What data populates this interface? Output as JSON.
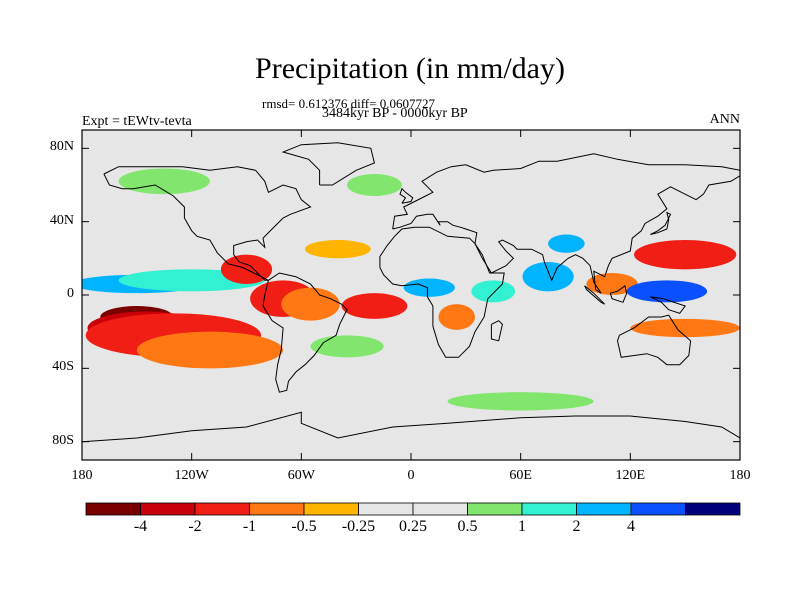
{
  "title": "Precipitation (in mm/day)",
  "stats": "rmsd= 0.612376 diff= 0.0607727",
  "period": "3484kyr BP - 0000kyr BP",
  "experiment": "Expt = tEWtv-tevta",
  "season": "ANN",
  "map": {
    "projection": "cylindrical-equidistant",
    "lon_range": [
      -180,
      180
    ],
    "lat_range": [
      -90,
      90
    ],
    "background_color": "#e6e6e6",
    "lat_ticks": [
      {
        "lat": 80,
        "label": "80N"
      },
      {
        "lat": 40,
        "label": "40N"
      },
      {
        "lat": 0,
        "label": "0"
      },
      {
        "lat": -40,
        "label": "40S"
      },
      {
        "lat": -80,
        "label": "80S"
      }
    ],
    "lon_ticks": [
      {
        "lon": -180,
        "label": "180"
      },
      {
        "lon": -120,
        "label": "120W"
      },
      {
        "lon": -60,
        "label": "60W"
      },
      {
        "lon": 0,
        "label": "0"
      },
      {
        "lon": 60,
        "label": "60E"
      },
      {
        "lon": 120,
        "label": "120E"
      },
      {
        "lon": 180,
        "label": "180"
      }
    ]
  },
  "colorbar": {
    "colors": [
      "#7a0000",
      "#c8000a",
      "#f01e14",
      "#ff7814",
      "#ffb400",
      "#e6e6e6",
      "#e6e6e6",
      "#82e66e",
      "#32f0d2",
      "#00b4ff",
      "#0a50ff",
      "#00007a"
    ],
    "labels": [
      "-4",
      "-2",
      "-1",
      "-0.5",
      "-0.25",
      "0.25",
      "0.5",
      "1",
      "2",
      "4"
    ]
  },
  "anomaly_regions": [
    {
      "lon": -150,
      "lat": -12,
      "rx": 20,
      "ry": 6,
      "color": "#7a0000"
    },
    {
      "lon": -145,
      "lat": -18,
      "rx": 32,
      "ry": 9,
      "color": "#c8000a"
    },
    {
      "lon": -130,
      "lat": -22,
      "rx": 48,
      "ry": 12,
      "color": "#f01e14"
    },
    {
      "lon": -110,
      "lat": -30,
      "rx": 40,
      "ry": 10,
      "color": "#ff7814"
    },
    {
      "lon": -150,
      "lat": 6,
      "rx": 35,
      "ry": 5,
      "color": "#00b4ff"
    },
    {
      "lon": -120,
      "lat": 8,
      "rx": 40,
      "ry": 6,
      "color": "#32f0d2"
    },
    {
      "lon": -90,
      "lat": 14,
      "rx": 14,
      "ry": 8,
      "color": "#f01e14"
    },
    {
      "lon": -70,
      "lat": -2,
      "rx": 18,
      "ry": 10,
      "color": "#f01e14"
    },
    {
      "lon": -55,
      "lat": -5,
      "rx": 16,
      "ry": 9,
      "color": "#ff7814"
    },
    {
      "lon": -20,
      "lat": -6,
      "rx": 18,
      "ry": 7,
      "color": "#f01e14"
    },
    {
      "lon": -40,
      "lat": 25,
      "rx": 18,
      "ry": 5,
      "color": "#ffb400"
    },
    {
      "lon": -35,
      "lat": -28,
      "rx": 20,
      "ry": 6,
      "color": "#82e66e"
    },
    {
      "lon": 10,
      "lat": 4,
      "rx": 14,
      "ry": 5,
      "color": "#00b4ff"
    },
    {
      "lon": 25,
      "lat": -12,
      "rx": 10,
      "ry": 7,
      "color": "#ff7814"
    },
    {
      "lon": 45,
      "lat": 2,
      "rx": 12,
      "ry": 6,
      "color": "#32f0d2"
    },
    {
      "lon": 75,
      "lat": 10,
      "rx": 14,
      "ry": 8,
      "color": "#00b4ff"
    },
    {
      "lon": 85,
      "lat": 28,
      "rx": 10,
      "ry": 5,
      "color": "#00b4ff"
    },
    {
      "lon": 110,
      "lat": 6,
      "rx": 14,
      "ry": 6,
      "color": "#ff7814"
    },
    {
      "lon": 140,
      "lat": 2,
      "rx": 22,
      "ry": 6,
      "color": "#0a50ff"
    },
    {
      "lon": 150,
      "lat": 22,
      "rx": 28,
      "ry": 8,
      "color": "#f01e14"
    },
    {
      "lon": 150,
      "lat": -18,
      "rx": 30,
      "ry": 5,
      "color": "#ff7814"
    },
    {
      "lon": -135,
      "lat": 62,
      "rx": 25,
      "ry": 7,
      "color": "#82e66e"
    },
    {
      "lon": -20,
      "lat": 60,
      "rx": 15,
      "ry": 6,
      "color": "#82e66e"
    },
    {
      "lon": 60,
      "lat": -58,
      "rx": 40,
      "ry": 5,
      "color": "#82e66e"
    }
  ],
  "coastlines": [
    [
      [
        -168,
        66
      ],
      [
        -160,
        70
      ],
      [
        -140,
        70
      ],
      [
        -125,
        70
      ],
      [
        -110,
        68
      ],
      [
        -95,
        70
      ],
      [
        -85,
        68
      ],
      [
        -80,
        62
      ],
      [
        -78,
        56
      ],
      [
        -70,
        60
      ],
      [
        -63,
        58
      ],
      [
        -60,
        52
      ],
      [
        -55,
        48
      ],
      [
        -66,
        44
      ],
      [
        -70,
        42
      ],
      [
        -76,
        36
      ],
      [
        -81,
        31
      ],
      [
        -80,
        26
      ],
      [
        -82,
        28
      ],
      [
        -84,
        30
      ],
      [
        -90,
        29
      ],
      [
        -97,
        27
      ],
      [
        -97,
        22
      ],
      [
        -94,
        18
      ],
      [
        -88,
        16
      ],
      [
        -84,
        12
      ],
      [
        -80,
        8
      ],
      [
        -78,
        8
      ],
      [
        -86,
        12
      ],
      [
        -92,
        15
      ],
      [
        -100,
        17
      ],
      [
        -106,
        23
      ],
      [
        -110,
        30
      ],
      [
        -117,
        32
      ],
      [
        -120,
        35
      ],
      [
        -124,
        42
      ],
      [
        -124,
        48
      ],
      [
        -130,
        54
      ],
      [
        -140,
        60
      ],
      [
        -152,
        58
      ],
      [
        -158,
        58
      ],
      [
        -165,
        60
      ],
      [
        -168,
        66
      ]
    ],
    [
      [
        -78,
        8
      ],
      [
        -72,
        12
      ],
      [
        -63,
        10
      ],
      [
        -55,
        6
      ],
      [
        -50,
        0
      ],
      [
        -44,
        -2
      ],
      [
        -38,
        -5
      ],
      [
        -35,
        -8
      ],
      [
        -39,
        -16
      ],
      [
        -41,
        -22
      ],
      [
        -48,
        -26
      ],
      [
        -53,
        -33
      ],
      [
        -58,
        -38
      ],
      [
        -63,
        -42
      ],
      [
        -67,
        -47
      ],
      [
        -68,
        -52
      ],
      [
        -72,
        -53
      ],
      [
        -74,
        -46
      ],
      [
        -73,
        -38
      ],
      [
        -71,
        -30
      ],
      [
        -70,
        -18
      ],
      [
        -76,
        -14
      ],
      [
        -81,
        -6
      ],
      [
        -80,
        0
      ],
      [
        -78,
        8
      ]
    ],
    [
      [
        -17,
        15
      ],
      [
        -17,
        21
      ],
      [
        -13,
        27
      ],
      [
        -9,
        32
      ],
      [
        -5,
        36
      ],
      [
        2,
        37
      ],
      [
        10,
        37
      ],
      [
        20,
        32
      ],
      [
        32,
        31
      ],
      [
        35,
        28
      ],
      [
        39,
        22
      ],
      [
        43,
        12
      ],
      [
        51,
        12
      ],
      [
        50,
        6
      ],
      [
        42,
        -2
      ],
      [
        40,
        -12
      ],
      [
        35,
        -20
      ],
      [
        32,
        -28
      ],
      [
        26,
        -34
      ],
      [
        19,
        -34
      ],
      [
        15,
        -27
      ],
      [
        12,
        -17
      ],
      [
        12,
        -6
      ],
      [
        9,
        -1
      ],
      [
        9,
        4
      ],
      [
        4,
        6
      ],
      [
        -5,
        5
      ],
      [
        -10,
        6
      ],
      [
        -15,
        11
      ],
      [
        -17,
        15
      ]
    ],
    [
      [
        -10,
        36
      ],
      [
        -9,
        43
      ],
      [
        -2,
        44
      ],
      [
        -4,
        48
      ],
      [
        2,
        51
      ],
      [
        8,
        54
      ],
      [
        12,
        56
      ],
      [
        10,
        58
      ],
      [
        6,
        62
      ],
      [
        14,
        67
      ],
      [
        22,
        70
      ],
      [
        30,
        71
      ],
      [
        40,
        67
      ],
      [
        45,
        68
      ],
      [
        60,
        69
      ],
      [
        70,
        73
      ],
      [
        80,
        73
      ],
      [
        100,
        77
      ],
      [
        113,
        74
      ],
      [
        130,
        71
      ],
      [
        150,
        71
      ],
      [
        170,
        70
      ],
      [
        180,
        68
      ],
      [
        180,
        65
      ],
      [
        175,
        62
      ],
      [
        163,
        60
      ],
      [
        160,
        55
      ],
      [
        156,
        52
      ],
      [
        142,
        59
      ],
      [
        135,
        55
      ],
      [
        140,
        47
      ],
      [
        135,
        43
      ],
      [
        128,
        39
      ],
      [
        126,
        35
      ],
      [
        121,
        31
      ],
      [
        120,
        24
      ],
      [
        110,
        20
      ],
      [
        108,
        16
      ],
      [
        106,
        10
      ],
      [
        100,
        13
      ],
      [
        101,
        3
      ],
      [
        104,
        1
      ],
      [
        100,
        7
      ],
      [
        98,
        16
      ],
      [
        94,
        20
      ],
      [
        90,
        22
      ],
      [
        86,
        20
      ],
      [
        80,
        15
      ],
      [
        77,
        8
      ],
      [
        73,
        18
      ],
      [
        72,
        22
      ],
      [
        66,
        25
      ],
      [
        58,
        25
      ],
      [
        56,
        27
      ],
      [
        50,
        30
      ],
      [
        48,
        29
      ],
      [
        52,
        24
      ],
      [
        56,
        20
      ],
      [
        52,
        16
      ],
      [
        44,
        12
      ],
      [
        39,
        20
      ],
      [
        35,
        28
      ],
      [
        36,
        34
      ],
      [
        30,
        36
      ],
      [
        27,
        37
      ],
      [
        23,
        38
      ],
      [
        20,
        40
      ],
      [
        15,
        40
      ],
      [
        16,
        38
      ],
      [
        12,
        44
      ],
      [
        9,
        44
      ],
      [
        3,
        43
      ],
      [
        0,
        39
      ],
      [
        -6,
        37
      ],
      [
        -10,
        36
      ]
    ],
    [
      [
        114,
        -22
      ],
      [
        122,
        -18
      ],
      [
        130,
        -12
      ],
      [
        137,
        -12
      ],
      [
        141,
        -11
      ],
      [
        146,
        -19
      ],
      [
        153,
        -25
      ],
      [
        152,
        -33
      ],
      [
        147,
        -38
      ],
      [
        140,
        -38
      ],
      [
        135,
        -34
      ],
      [
        129,
        -32
      ],
      [
        115,
        -34
      ],
      [
        113,
        -25
      ],
      [
        114,
        -22
      ]
    ],
    [
      [
        -5,
        50
      ],
      [
        0,
        51
      ],
      [
        1,
        53
      ],
      [
        -3,
        56
      ],
      [
        -5,
        58
      ],
      [
        -6,
        55
      ],
      [
        -3,
        53
      ],
      [
        -5,
        50
      ]
    ],
    [
      [
        -50,
        60
      ],
      [
        -43,
        60
      ],
      [
        -30,
        68
      ],
      [
        -20,
        72
      ],
      [
        -22,
        80
      ],
      [
        -40,
        83
      ],
      [
        -60,
        82
      ],
      [
        -70,
        78
      ],
      [
        -56,
        74
      ],
      [
        -50,
        68
      ],
      [
        -50,
        60
      ]
    ],
    [
      [
        131,
        33
      ],
      [
        135,
        34
      ],
      [
        140,
        36
      ],
      [
        141,
        41
      ],
      [
        140,
        45
      ],
      [
        142,
        44
      ],
      [
        139,
        38
      ],
      [
        135,
        35
      ],
      [
        131,
        33
      ]
    ],
    [
      [
        95,
        5
      ],
      [
        100,
        1
      ],
      [
        106,
        -5
      ],
      [
        104,
        -4
      ],
      [
        96,
        3
      ],
      [
        95,
        5
      ]
    ],
    [
      [
        109,
        1
      ],
      [
        110,
        -2
      ],
      [
        116,
        -4
      ],
      [
        118,
        1
      ],
      [
        117,
        5
      ],
      [
        113,
        2
      ],
      [
        109,
        1
      ]
    ],
    [
      [
        131,
        -1
      ],
      [
        138,
        -2
      ],
      [
        141,
        -3
      ],
      [
        150,
        -6
      ],
      [
        147,
        -10
      ],
      [
        141,
        -8
      ],
      [
        137,
        -4
      ],
      [
        131,
        -1
      ]
    ],
    [
      [
        44,
        -16
      ],
      [
        48,
        -14
      ],
      [
        50,
        -16
      ],
      [
        48,
        -25
      ],
      [
        44,
        -24
      ],
      [
        44,
        -16
      ]
    ],
    [
      [
        -180,
        -80
      ],
      [
        -150,
        -78
      ],
      [
        -120,
        -74
      ],
      [
        -90,
        -72
      ],
      [
        -60,
        -64
      ],
      [
        -60,
        -70
      ],
      [
        -40,
        -78
      ],
      [
        -10,
        -72
      ],
      [
        20,
        -70
      ],
      [
        60,
        -67
      ],
      [
        90,
        -66
      ],
      [
        120,
        -66
      ],
      [
        150,
        -69
      ],
      [
        170,
        -72
      ],
      [
        180,
        -78
      ]
    ]
  ]
}
